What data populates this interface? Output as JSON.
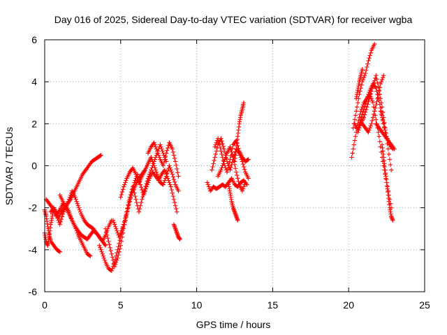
{
  "chart_data": {
    "type": "scatter",
    "title": "Day 016 of 2025, Sidereal Day-to-day VTEC variation (SDTVAR) for receiver wgba",
    "xlabel": "GPS time / hours",
    "ylabel": "SDTVAR / TECUs",
    "xlim": [
      0,
      25
    ],
    "ylim": [
      -6,
      6
    ],
    "x_ticks": [
      0,
      5,
      10,
      15,
      20,
      25
    ],
    "x_tick_labels": [
      "0",
      "5",
      "10",
      "15",
      "20",
      "25"
    ],
    "y_ticks": [
      -6,
      -4,
      -2,
      0,
      2,
      4,
      6
    ],
    "y_tick_labels": [
      "-6",
      "-4",
      "-2",
      "0",
      "2",
      "4",
      "6"
    ],
    "grid": true,
    "marker": "plus",
    "color": "#ff0000",
    "series": [
      {
        "x": [
          0.0,
          0.1,
          0.2,
          0.3,
          0.4,
          0.6,
          0.8,
          1.0
        ],
        "y": [
          -2.1,
          -2.4,
          -2.9,
          -3.3,
          -3.6,
          -3.8,
          -4.0,
          -4.1
        ]
      },
      {
        "x": [
          0.0,
          0.1,
          0.2,
          0.3,
          0.4,
          0.5,
          0.6,
          0.8,
          1.0,
          1.2,
          1.4,
          1.6,
          1.8,
          2.0,
          2.2,
          2.4,
          2.6,
          2.8,
          3.0
        ],
        "y": [
          -3.2,
          -3.6,
          -3.8,
          -3.4,
          -2.8,
          -2.4,
          -2.0,
          -2.4,
          -2.8,
          -2.3,
          -1.9,
          -2.2,
          -2.6,
          -2.9,
          -3.3,
          -3.6,
          -3.9,
          -4.2,
          -4.3
        ]
      },
      {
        "x": [
          0.1,
          0.3,
          0.5,
          0.7,
          0.9,
          1.1,
          1.3,
          1.5,
          1.7,
          1.9,
          2.1,
          2.3,
          2.5,
          2.7,
          2.9,
          3.1,
          3.3,
          3.5,
          3.7
        ],
        "y": [
          -1.6,
          -1.8,
          -2.0,
          -2.3,
          -2.5,
          -2.2,
          -2.0,
          -1.8,
          -1.6,
          -1.3,
          -1.0,
          -0.7,
          -0.4,
          -0.2,
          0.0,
          0.2,
          0.3,
          0.4,
          0.5
        ]
      },
      {
        "x": [
          0.4,
          0.6,
          0.8,
          1.0,
          1.2,
          1.4,
          1.6,
          1.8,
          2.0,
          2.2,
          2.4,
          2.6,
          2.8,
          3.0,
          3.2,
          3.4,
          3.6,
          3.8,
          4.0,
          4.2,
          4.4
        ],
        "y": [
          -2.2,
          -2.0,
          -2.3,
          -2.1,
          -1.8,
          -2.0,
          -2.3,
          -2.6,
          -2.9,
          -3.1,
          -3.3,
          -3.4,
          -3.5,
          -3.3,
          -3.1,
          -3.2,
          -3.4,
          -3.6,
          -3.3,
          -2.9,
          -2.6
        ]
      },
      {
        "x": [
          1.0,
          1.2,
          1.4,
          1.6,
          1.8,
          2.0,
          2.2,
          2.4,
          2.6,
          2.8,
          3.0,
          3.2,
          3.4,
          3.6,
          3.8,
          4.0
        ],
        "y": [
          -1.4,
          -1.7,
          -2.0,
          -1.6,
          -1.2,
          -1.5,
          -1.9,
          -2.3,
          -2.6,
          -2.8,
          -2.9,
          -3.0,
          -3.2,
          -3.4,
          -3.6,
          -3.8
        ]
      },
      {
        "x": [
          3.6,
          3.8,
          4.0,
          4.2,
          4.4,
          4.6,
          4.8,
          5.0,
          5.2,
          5.4,
          5.6,
          5.8,
          6.0,
          6.2,
          6.4,
          6.6,
          6.8,
          7.0
        ],
        "y": [
          -3.8,
          -4.2,
          -4.6,
          -4.9,
          -5.0,
          -4.6,
          -4.0,
          -3.4,
          -2.8,
          -2.2,
          -1.6,
          -1.2,
          -0.9,
          -0.6,
          -0.4,
          -0.2,
          0.1,
          0.4
        ]
      },
      {
        "x": [
          4.0,
          4.2,
          4.4,
          4.6,
          4.8,
          5.0,
          5.2,
          5.4,
          5.6,
          5.8,
          6.0,
          6.2,
          6.4,
          6.6,
          6.8,
          7.0,
          7.2,
          7.4,
          7.6,
          7.8,
          8.0
        ],
        "y": [
          -3.0,
          -3.6,
          -4.2,
          -4.8,
          -4.4,
          -3.8,
          -3.0,
          -2.2,
          -1.5,
          -1.0,
          -1.6,
          -2.2,
          -1.6,
          -1.1,
          -0.6,
          -0.2,
          0.2,
          0.6,
          1.0,
          0.6,
          0.2
        ]
      },
      {
        "x": [
          4.5,
          4.7,
          4.9,
          5.1,
          5.3,
          5.5,
          5.7,
          5.9,
          6.1,
          6.3,
          6.5,
          6.7,
          6.9,
          7.1,
          7.3,
          7.5,
          7.7,
          7.9,
          8.1,
          8.3,
          8.5,
          8.7
        ],
        "y": [
          -2.6,
          -3.0,
          -3.4,
          -3.0,
          -2.6,
          -2.0,
          -1.4,
          -0.8,
          -0.4,
          -0.9,
          -1.4,
          -1.0,
          -0.6,
          -0.3,
          -0.5,
          -0.7,
          -0.4,
          -0.2,
          -0.6,
          -1.0,
          -1.6,
          -2.2
        ]
      },
      {
        "x": [
          5.0,
          5.2,
          5.4,
          5.6,
          5.8,
          6.0,
          6.2,
          6.4,
          6.6,
          6.8,
          7.0,
          7.2,
          7.4,
          7.6,
          7.8,
          8.0,
          8.2,
          8.4,
          8.6,
          8.8
        ],
        "y": [
          -1.5,
          -1.0,
          -0.6,
          -0.3,
          -0.1,
          -0.4,
          -0.8,
          -0.5,
          -0.2,
          0.1,
          0.4,
          0.0,
          -0.4,
          -0.8,
          -0.9,
          -0.5,
          0.0,
          -0.4,
          -0.9,
          -1.2
        ]
      },
      {
        "x": [
          6.8,
          7.0,
          7.2,
          7.4,
          7.6,
          7.8,
          8.0,
          8.2,
          8.4,
          8.6,
          8.8
        ],
        "y": [
          0.6,
          0.9,
          1.1,
          0.7,
          0.3,
          0.0,
          0.6,
          1.1,
          0.8,
          0.2,
          -0.5
        ]
      },
      {
        "x": [
          8.5,
          8.6,
          8.7,
          8.8,
          8.9
        ],
        "y": [
          -2.8,
          -3.0,
          -3.2,
          -3.4,
          -3.5
        ]
      },
      {
        "x": [
          10.7,
          10.9,
          11.1,
          11.3,
          11.5,
          11.7,
          11.9,
          12.1,
          12.3,
          12.5,
          12.7,
          12.9,
          13.1,
          13.3
        ],
        "y": [
          -0.8,
          -1.2,
          -1.0,
          -1.1,
          -1.0,
          -0.9,
          -1.0,
          -0.8,
          -0.6,
          -0.9,
          -1.0,
          -0.8,
          -0.7,
          -0.9
        ]
      },
      {
        "x": [
          11.0,
          11.2,
          11.4,
          11.6,
          11.8,
          12.0,
          12.2,
          12.4,
          12.6,
          12.8,
          13.0,
          13.2,
          13.4
        ],
        "y": [
          -0.2,
          0.4,
          1.0,
          1.3,
          0.8,
          0.2,
          -0.2,
          0.3,
          0.8,
          0.6,
          0.2,
          -0.3,
          -0.6
        ]
      },
      {
        "x": [
          11.2,
          11.4,
          11.6,
          11.8,
          12.0,
          12.2,
          12.4,
          12.6,
          12.8,
          13.0,
          13.2,
          13.4
        ],
        "y": [
          0.9,
          1.3,
          0.7,
          0.1,
          -0.3,
          0.3,
          1.0,
          1.2,
          0.7,
          0.4,
          0.2,
          0.3
        ]
      },
      {
        "x": [
          11.4,
          11.6,
          11.8,
          12.0,
          12.2,
          12.4,
          12.6,
          12.8,
          13.0,
          13.2
        ],
        "y": [
          -0.5,
          -0.2,
          0.2,
          0.6,
          0.9,
          0.4,
          -0.3,
          -0.9,
          -1.2,
          -0.8
        ]
      },
      {
        "x": [
          12.1,
          12.2,
          12.3,
          12.4,
          12.5,
          12.6,
          12.7
        ],
        "y": [
          -0.9,
          -1.3,
          -1.7,
          -2.0,
          -2.2,
          -2.4,
          -2.6
        ]
      },
      {
        "x": [
          12.5,
          12.6,
          12.7,
          12.8,
          12.9,
          13.0,
          13.1
        ],
        "y": [
          0.2,
          0.8,
          1.4,
          2.0,
          2.4,
          2.7,
          3.0
        ]
      },
      {
        "x": [
          20.2,
          20.4,
          20.6,
          20.8,
          21.0,
          21.2,
          21.4,
          21.6,
          21.8,
          22.0,
          22.2,
          22.4,
          22.6,
          22.8
        ],
        "y": [
          0.4,
          1.2,
          2.0,
          2.6,
          3.0,
          3.2,
          3.4,
          3.0,
          2.2,
          1.4,
          0.4,
          -0.4,
          -1.2,
          -2.0
        ]
      },
      {
        "x": [
          20.3,
          20.5,
          20.7,
          20.9,
          21.1,
          21.3,
          21.5,
          21.7
        ],
        "y": [
          1.8,
          2.6,
          3.4,
          4.0,
          4.4,
          5.0,
          5.5,
          5.8
        ]
      },
      {
        "x": [
          20.4,
          20.6,
          20.8,
          21.0,
          21.2,
          21.4,
          21.6,
          21.8,
          22.0,
          22.2,
          22.4
        ],
        "y": [
          2.0,
          1.7,
          2.2,
          2.7,
          3.2,
          3.6,
          3.9,
          3.7,
          3.1,
          2.4,
          1.6
        ]
      },
      {
        "x": [
          20.5,
          20.6,
          20.7,
          20.8,
          20.9
        ],
        "y": [
          3.2,
          3.6,
          4.0,
          4.3,
          4.6
        ]
      },
      {
        "x": [
          20.6,
          20.8,
          21.0,
          21.2,
          21.4,
          21.6,
          21.8,
          22.0,
          22.2,
          22.4,
          22.6,
          22.8
        ],
        "y": [
          1.6,
          2.0,
          2.3,
          2.8,
          3.3,
          3.8,
          4.3,
          3.6,
          2.8,
          1.8,
          0.8,
          -0.2
        ]
      },
      {
        "x": [
          20.9,
          21.1,
          21.3,
          21.5,
          21.7,
          21.9,
          22.1,
          22.3
        ],
        "y": [
          2.0,
          1.8,
          1.6,
          2.0,
          2.6,
          3.2,
          3.9,
          4.3
        ]
      },
      {
        "x": [
          21.8,
          22.0,
          22.2,
          22.4,
          22.6,
          22.8,
          23.0
        ],
        "y": [
          2.0,
          1.8,
          1.6,
          1.4,
          1.2,
          1.0,
          0.8
        ]
      },
      {
        "x": [
          22.2,
          22.3,
          22.4,
          22.5,
          22.6,
          22.7,
          22.8,
          22.9
        ],
        "y": [
          1.0,
          0.4,
          -0.2,
          -0.8,
          -1.4,
          -2.0,
          -2.4,
          -2.6
        ]
      },
      {
        "x": [
          22.1,
          22.3,
          22.5,
          22.7,
          22.9
        ],
        "y": [
          2.6,
          2.0,
          1.4,
          1.0,
          0.8
        ]
      }
    ]
  }
}
